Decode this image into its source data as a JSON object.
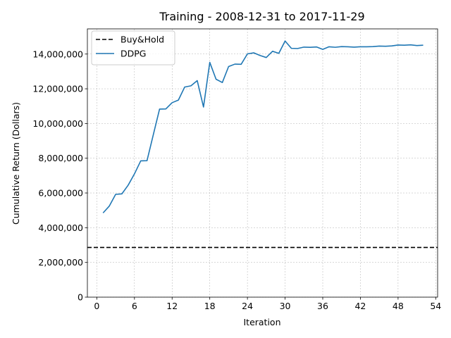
{
  "chart_data": {
    "type": "line",
    "title": "Training - 2008-12-31 to 2017-11-29",
    "xlabel": "Iteration",
    "ylabel": "Cumulative Return (Dollars)",
    "xlim": [
      -1.5,
      54.3
    ],
    "ylim": [
      0,
      15450000
    ],
    "xticks": [
      0,
      6,
      12,
      18,
      24,
      30,
      36,
      42,
      48,
      54
    ],
    "yticks": [
      0,
      2000000,
      4000000,
      6000000,
      8000000,
      10000000,
      12000000,
      14000000
    ],
    "ytick_labels": [
      "0",
      "2,000,000",
      "4,000,000",
      "6,000,000",
      "8,000,000",
      "10,000,000",
      "12,000,000",
      "14,000,000"
    ],
    "grid": true,
    "legend_position": "top-left",
    "series": [
      {
        "name": "Buy&Hold",
        "style": "dashed",
        "color": "#000000",
        "y_constant": 2860000
      },
      {
        "name": "DDPG",
        "style": "solid",
        "color": "#1f77b4",
        "x": [
          1,
          2,
          3,
          4,
          5,
          6,
          7,
          8,
          9,
          10,
          11,
          12,
          13,
          14,
          15,
          16,
          17,
          18,
          19,
          20,
          21,
          22,
          23,
          24,
          25,
          26,
          27,
          28,
          29,
          30,
          31,
          32,
          33,
          34,
          35,
          36,
          37,
          38,
          39,
          40,
          41,
          42,
          43,
          44,
          45,
          46,
          47,
          48,
          49,
          50,
          51,
          52
        ],
        "y": [
          4850000,
          5250000,
          5920000,
          5950000,
          6450000,
          7100000,
          7850000,
          7860000,
          9350000,
          10830000,
          10840000,
          11200000,
          11350000,
          12100000,
          12170000,
          12470000,
          10950000,
          13520000,
          12550000,
          12360000,
          13280000,
          13420000,
          13410000,
          14010000,
          14070000,
          13920000,
          13800000,
          14160000,
          14040000,
          14750000,
          14330000,
          14320000,
          14400000,
          14390000,
          14410000,
          14270000,
          14420000,
          14390000,
          14430000,
          14420000,
          14400000,
          14420000,
          14420000,
          14430000,
          14460000,
          14450000,
          14470000,
          14520000,
          14510000,
          14530000,
          14490000,
          14510000
        ]
      }
    ]
  }
}
